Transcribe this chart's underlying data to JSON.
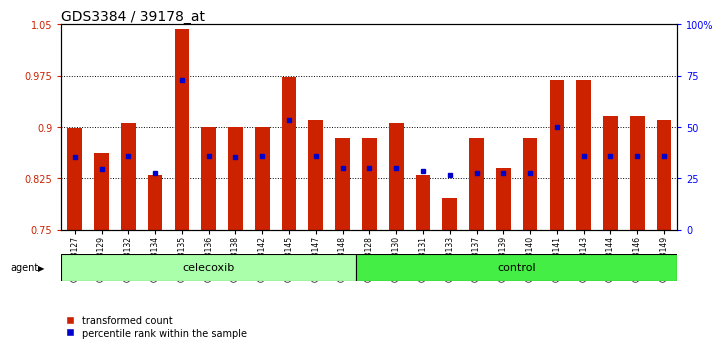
{
  "title": "GDS3384 / 39178_at",
  "samples": [
    "GSM283127",
    "GSM283129",
    "GSM283132",
    "GSM283134",
    "GSM283135",
    "GSM283136",
    "GSM283138",
    "GSM283142",
    "GSM283145",
    "GSM283147",
    "GSM283148",
    "GSM283128",
    "GSM283130",
    "GSM283131",
    "GSM283133",
    "GSM283137",
    "GSM283139",
    "GSM283140",
    "GSM283141",
    "GSM283143",
    "GSM283144",
    "GSM283146",
    "GSM283149"
  ],
  "red_values": [
    0.898,
    0.862,
    0.906,
    0.83,
    1.043,
    0.9,
    0.9,
    0.9,
    0.973,
    0.91,
    0.884,
    0.884,
    0.905,
    0.83,
    0.796,
    0.884,
    0.84,
    0.884,
    0.969,
    0.969,
    0.916,
    0.916,
    0.91
  ],
  "blue_values": [
    0.856,
    0.838,
    0.858,
    0.832,
    0.968,
    0.858,
    0.856,
    0.858,
    0.91,
    0.858,
    0.84,
    0.84,
    0.84,
    0.836,
    0.83,
    0.832,
    0.832,
    0.832,
    0.9,
    0.858,
    0.858,
    0.858,
    0.858
  ],
  "group_celecoxib": 11,
  "group_control": 12,
  "ylim_left": [
    0.75,
    1.05
  ],
  "yticks_left": [
    0.75,
    0.825,
    0.9,
    0.975,
    1.05
  ],
  "ytick_labels_left": [
    "0.75",
    "0.825",
    "0.9",
    "0.975",
    "1.05"
  ],
  "ylim_right": [
    0,
    100
  ],
  "yticks_right": [
    0,
    25,
    50,
    75,
    100
  ],
  "ytick_labels_right": [
    "0",
    "25",
    "50",
    "75",
    "100%"
  ],
  "bar_width": 0.55,
  "red_color": "#CC2200",
  "blue_color": "#0000CC",
  "celecoxib_color": "#AAFFAA",
  "control_color": "#44EE44",
  "agent_label": "agent",
  "celecoxib_label": "celecoxib",
  "control_label": "control",
  "legend_red": "transformed count",
  "legend_blue": "percentile rank within the sample",
  "bg_color": "#FFFFFF",
  "title_fontsize": 10,
  "tick_fontsize": 7,
  "label_fontsize": 8
}
